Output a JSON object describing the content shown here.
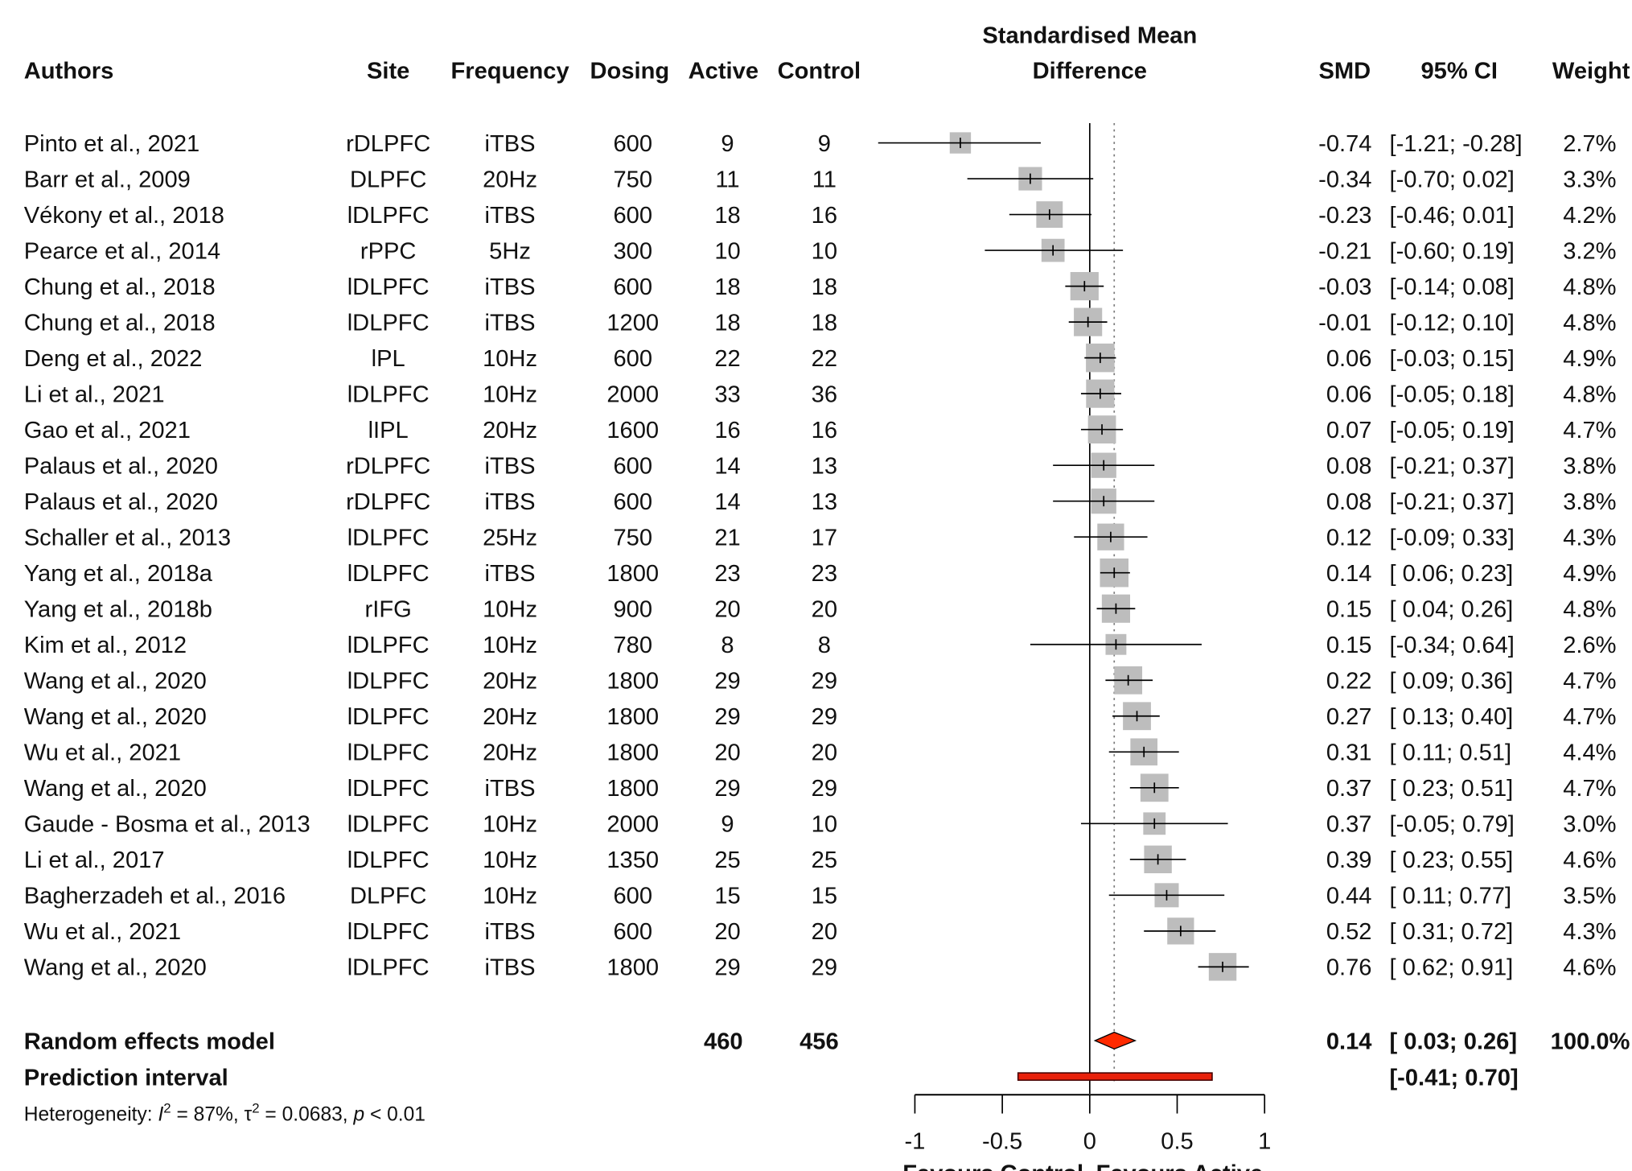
{
  "chart_data": {
    "type": "forest",
    "headers": {
      "authors": "Authors",
      "site": "Site",
      "frequency": "Frequency",
      "dosing": "Dosing",
      "active": "Active",
      "control": "Control",
      "plot_line1": "Standardised Mean",
      "plot_line2": "Difference",
      "smd": "SMD",
      "ci": "95% CI",
      "weight": "Weight"
    },
    "studies": [
      {
        "author": "Pinto et al., 2021",
        "site": "rDLPFC",
        "frequency": "iTBS",
        "dosing": "600",
        "active": "9",
        "control": "9",
        "smd": -0.74,
        "lower": -1.21,
        "upper": -0.28,
        "weight": "2.7%"
      },
      {
        "author": "Barr et al., 2009",
        "site": "DLPFC",
        "frequency": "20Hz",
        "dosing": "750",
        "active": "11",
        "control": "11",
        "smd": -0.34,
        "lower": -0.7,
        "upper": 0.02,
        "weight": "3.3%"
      },
      {
        "author": "Vékony et al., 2018",
        "site": "lDLPFC",
        "frequency": "iTBS",
        "dosing": "600",
        "active": "18",
        "control": "16",
        "smd": -0.23,
        "lower": -0.46,
        "upper": 0.01,
        "weight": "4.2%"
      },
      {
        "author": "Pearce et al., 2014",
        "site": "rPPC",
        "frequency": "5Hz",
        "dosing": "300",
        "active": "10",
        "control": "10",
        "smd": -0.21,
        "lower": -0.6,
        "upper": 0.19,
        "weight": "3.2%"
      },
      {
        "author": "Chung et al., 2018",
        "site": "lDLPFC",
        "frequency": "iTBS",
        "dosing": "600",
        "active": "18",
        "control": "18",
        "smd": -0.03,
        "lower": -0.14,
        "upper": 0.08,
        "weight": "4.8%"
      },
      {
        "author": "Chung et al., 2018",
        "site": "lDLPFC",
        "frequency": "iTBS",
        "dosing": "1200",
        "active": "18",
        "control": "18",
        "smd": -0.01,
        "lower": -0.12,
        "upper": 0.1,
        "weight": "4.8%"
      },
      {
        "author": "Deng et al., 2022",
        "site": "lPL",
        "frequency": "10Hz",
        "dosing": "600",
        "active": "22",
        "control": "22",
        "smd": 0.06,
        "lower": -0.03,
        "upper": 0.15,
        "weight": "4.9%"
      },
      {
        "author": "Li et al., 2021",
        "site": "lDLPFC",
        "frequency": "10Hz",
        "dosing": "2000",
        "active": "33",
        "control": "36",
        "smd": 0.06,
        "lower": -0.05,
        "upper": 0.18,
        "weight": "4.8%"
      },
      {
        "author": "Gao et al., 2021",
        "site": "lIPL",
        "frequency": "20Hz",
        "dosing": "1600",
        "active": "16",
        "control": "16",
        "smd": 0.07,
        "lower": -0.05,
        "upper": 0.19,
        "weight": "4.7%"
      },
      {
        "author": "Palaus et al., 2020",
        "site": "rDLPFC",
        "frequency": "iTBS",
        "dosing": "600",
        "active": "14",
        "control": "13",
        "smd": 0.08,
        "lower": -0.21,
        "upper": 0.37,
        "weight": "3.8%"
      },
      {
        "author": "Palaus et al., 2020",
        "site": "rDLPFC",
        "frequency": "iTBS",
        "dosing": "600",
        "active": "14",
        "control": "13",
        "smd": 0.08,
        "lower": -0.21,
        "upper": 0.37,
        "weight": "3.8%"
      },
      {
        "author": "Schaller et al., 2013",
        "site": "lDLPFC",
        "frequency": "25Hz",
        "dosing": "750",
        "active": "21",
        "control": "17",
        "smd": 0.12,
        "lower": -0.09,
        "upper": 0.33,
        "weight": "4.3%"
      },
      {
        "author": "Yang et al., 2018a",
        "site": "lDLPFC",
        "frequency": "iTBS",
        "dosing": "1800",
        "active": "23",
        "control": "23",
        "smd": 0.14,
        "lower": 0.06,
        "upper": 0.23,
        "weight": "4.9%"
      },
      {
        "author": "Yang et al., 2018b",
        "site": "rIFG",
        "frequency": "10Hz",
        "dosing": "900",
        "active": "20",
        "control": "20",
        "smd": 0.15,
        "lower": 0.04,
        "upper": 0.26,
        "weight": "4.8%"
      },
      {
        "author": "Kim et al., 2012",
        "site": "lDLPFC",
        "frequency": "10Hz",
        "dosing": "780",
        "active": "8",
        "control": "8",
        "smd": 0.15,
        "lower": -0.34,
        "upper": 0.64,
        "weight": "2.6%"
      },
      {
        "author": "Wang et al., 2020",
        "site": "lDLPFC",
        "frequency": "20Hz",
        "dosing": "1800",
        "active": "29",
        "control": "29",
        "smd": 0.22,
        "lower": 0.09,
        "upper": 0.36,
        "weight": "4.7%"
      },
      {
        "author": "Wang et al., 2020",
        "site": "lDLPFC",
        "frequency": "20Hz",
        "dosing": "1800",
        "active": "29",
        "control": "29",
        "smd": 0.27,
        "lower": 0.13,
        "upper": 0.4,
        "weight": "4.7%"
      },
      {
        "author": "Wu et al., 2021",
        "site": "lDLPFC",
        "frequency": "20Hz",
        "dosing": "1800",
        "active": "20",
        "control": "20",
        "smd": 0.31,
        "lower": 0.11,
        "upper": 0.51,
        "weight": "4.4%"
      },
      {
        "author": "Wang et al., 2020",
        "site": "lDLPFC",
        "frequency": "iTBS",
        "dosing": "1800",
        "active": "29",
        "control": "29",
        "smd": 0.37,
        "lower": 0.23,
        "upper": 0.51,
        "weight": "4.7%"
      },
      {
        "author": "Gaude - Bosma et al., 2013",
        "site": "lDLPFC",
        "frequency": "10Hz",
        "dosing": "2000",
        "active": "9",
        "control": "10",
        "smd": 0.37,
        "lower": -0.05,
        "upper": 0.79,
        "weight": "3.0%"
      },
      {
        "author": "Li et al., 2017",
        "site": "lDLPFC",
        "frequency": "10Hz",
        "dosing": "1350",
        "active": "25",
        "control": "25",
        "smd": 0.39,
        "lower": 0.23,
        "upper": 0.55,
        "weight": "4.6%"
      },
      {
        "author": "Bagherzadeh et al., 2016",
        "site": "DLPFC",
        "frequency": "10Hz",
        "dosing": "600",
        "active": "15",
        "control": "15",
        "smd": 0.44,
        "lower": 0.11,
        "upper": 0.77,
        "weight": "3.5%"
      },
      {
        "author": "Wu et al., 2021",
        "site": "lDLPFC",
        "frequency": "iTBS",
        "dosing": "600",
        "active": "20",
        "control": "20",
        "smd": 0.52,
        "lower": 0.31,
        "upper": 0.72,
        "weight": "4.3%"
      },
      {
        "author": "Wang et al., 2020",
        "site": "lDLPFC",
        "frequency": "iTBS",
        "dosing": "1800",
        "active": "29",
        "control": "29",
        "smd": 0.76,
        "lower": 0.62,
        "upper": 0.91,
        "weight": "4.6%"
      }
    ],
    "random_effects": {
      "label": "Random effects model",
      "active": "460",
      "control": "456",
      "smd": 0.14,
      "lower": 0.03,
      "upper": 0.26,
      "weight": "100.0%"
    },
    "prediction_interval": {
      "label": "Prediction interval",
      "lower": -0.41,
      "upper": 0.7
    },
    "heterogeneity": {
      "prefix": "Heterogeneity: ",
      "i2": "I",
      "i2_val": " = 87%, ",
      "tau": "τ",
      "tau_val": " = 0.0683, ",
      "p": "p",
      "p_val": " < 0.01",
      "sup": "2"
    },
    "xaxis": {
      "ticks": [
        -1,
        -0.5,
        0,
        0.5,
        1
      ],
      "tick_labels": [
        "-1",
        "-0.5",
        "0",
        "0.5",
        "1"
      ],
      "range": [
        -1,
        1
      ],
      "label_left": "Favours Control",
      "label_right": "Favours Active"
    },
    "colors": {
      "square": "#bdbdbd",
      "diamond": "#ff2a00",
      "prediction": "#e8210b"
    }
  }
}
